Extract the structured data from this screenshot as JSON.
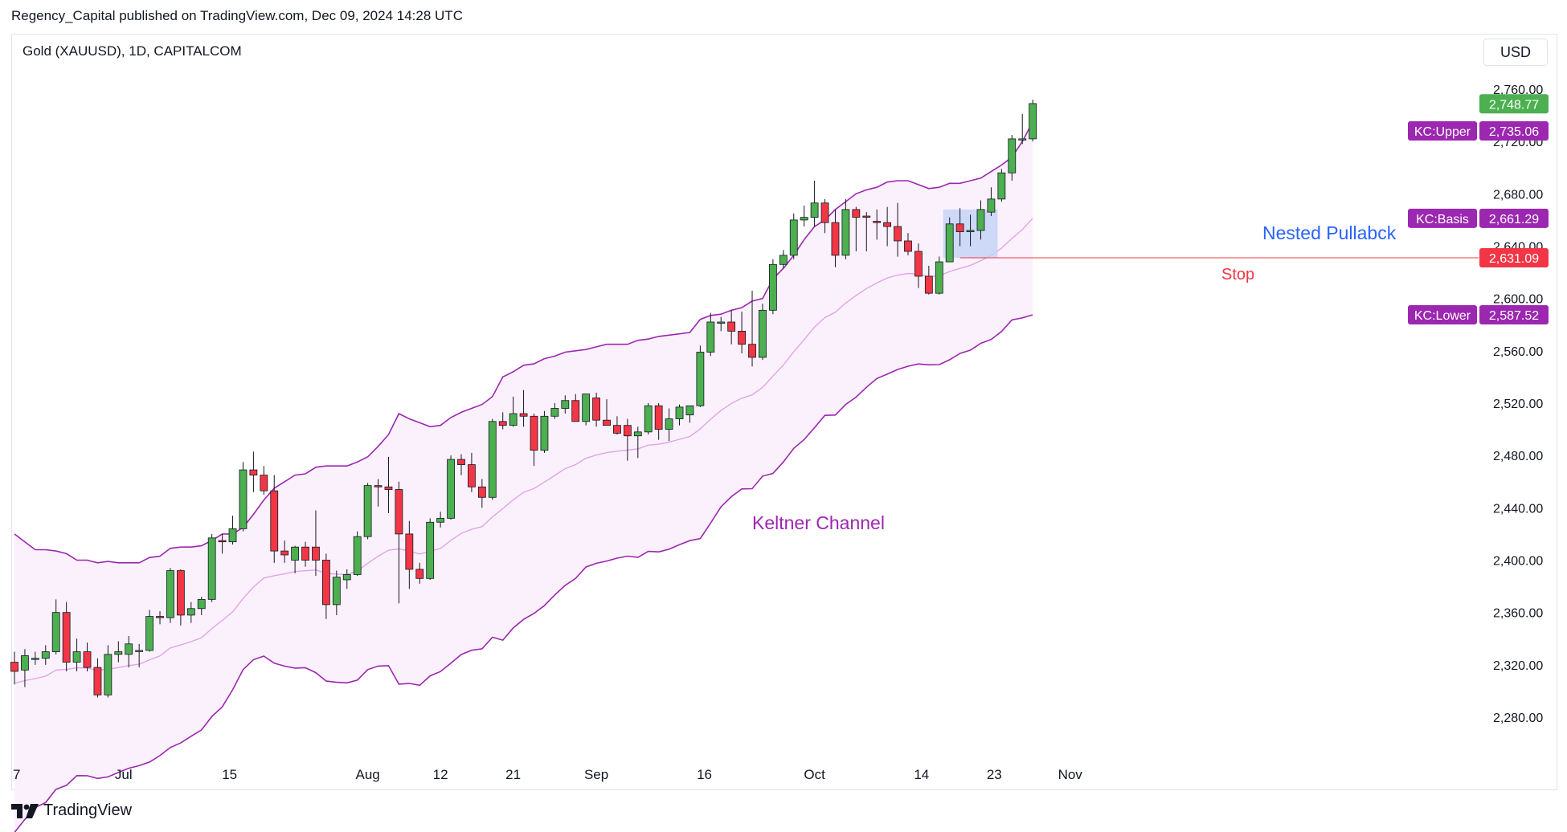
{
  "publisher_line": "Regency_Capital published on TradingView.com, Dec 09, 2024 14:28 UTC",
  "symbol_line": "Gold (XAUUSD), 1D, CAPITALCOM",
  "currency": "USD",
  "brand": "TradingView",
  "colors": {
    "up": "#4caf50",
    "down": "#f23645",
    "band_line": "#9c27b0",
    "basis_line": "#e1a3e8",
    "band_fill": "#fbf1fc",
    "highlight": "#c5d3f6",
    "stop_line": "#f23645",
    "label_purple": "#9c27b0",
    "last_price": "#4caf50",
    "stop_price": "#f23645"
  },
  "chart_data": {
    "type": "candlestick",
    "ylim": [
      2250,
      2775
    ],
    "y_ticks": [
      2280,
      2320,
      2360,
      2400,
      2440,
      2480,
      2520,
      2560,
      2600,
      2640,
      2680,
      2720,
      2760
    ],
    "y_tick_labels": [
      "2,280.00",
      "2,320.00",
      "2,360.00",
      "2,400.00",
      "2,440.00",
      "2,480.00",
      "2,520.00",
      "2,560.00",
      "2,600.00",
      "2,640.00",
      "2,680.00",
      "2,720.00",
      "2,760.00"
    ],
    "x_ticks": [
      {
        "label": "7",
        "bar": 0
      },
      {
        "label": "Jul",
        "bar": 10.5
      },
      {
        "label": "15",
        "bar": 20.7
      },
      {
        "label": "Aug",
        "bar": 34
      },
      {
        "label": "12",
        "bar": 41
      },
      {
        "label": "21",
        "bar": 48
      },
      {
        "label": "Sep",
        "bar": 56
      },
      {
        "label": "16",
        "bar": 66.4
      },
      {
        "label": "Oct",
        "bar": 77
      },
      {
        "label": "14",
        "bar": 87.3
      },
      {
        "label": "23",
        "bar": 94.3
      },
      {
        "label": "Nov",
        "bar": 101.6
      }
    ],
    "candles": [
      [
        2322,
        2330,
        2305,
        2315
      ],
      [
        2316,
        2332,
        2303,
        2327
      ],
      [
        2325,
        2330,
        2320,
        2325
      ],
      [
        2325,
        2335,
        2320,
        2330
      ],
      [
        2330,
        2370,
        2328,
        2360
      ],
      [
        2360,
        2368,
        2315,
        2322
      ],
      [
        2322,
        2340,
        2315,
        2330
      ],
      [
        2330,
        2337,
        2315,
        2318
      ],
      [
        2318,
        2325,
        2295,
        2297
      ],
      [
        2297,
        2335,
        2295,
        2328
      ],
      [
        2328,
        2338,
        2322,
        2330
      ],
      [
        2328,
        2342,
        2318,
        2336
      ],
      [
        2331,
        2336,
        2318,
        2331
      ],
      [
        2331,
        2362,
        2330,
        2357
      ],
      [
        2357,
        2361,
        2351,
        2356
      ],
      [
        2356,
        2394,
        2352,
        2392
      ],
      [
        2392,
        2393,
        2350,
        2358
      ],
      [
        2358,
        2368,
        2352,
        2363
      ],
      [
        2363,
        2372,
        2358,
        2370
      ],
      [
        2370,
        2420,
        2368,
        2417
      ],
      [
        2415,
        2420,
        2405,
        2414
      ],
      [
        2414,
        2434,
        2412,
        2424
      ],
      [
        2424,
        2475,
        2422,
        2469
      ],
      [
        2469,
        2483,
        2452,
        2465
      ],
      [
        2465,
        2472,
        2450,
        2453
      ],
      [
        2453,
        2465,
        2398,
        2407
      ],
      [
        2407,
        2415,
        2398,
        2404
      ],
      [
        2400,
        2411,
        2390,
        2410
      ],
      [
        2410,
        2414,
        2395,
        2400
      ],
      [
        2410,
        2438,
        2388,
        2400
      ],
      [
        2400,
        2405,
        2355,
        2366
      ],
      [
        2366,
        2392,
        2358,
        2387
      ],
      [
        2385,
        2393,
        2378,
        2389
      ],
      [
        2389,
        2422,
        2388,
        2418
      ],
      [
        2418,
        2459,
        2416,
        2457
      ],
      [
        2457,
        2462,
        2441,
        2456
      ],
      [
        2456,
        2479,
        2436,
        2454
      ],
      [
        2454,
        2460,
        2367,
        2420
      ],
      [
        2420,
        2430,
        2378,
        2393
      ],
      [
        2393,
        2398,
        2382,
        2386
      ],
      [
        2386,
        2432,
        2385,
        2429
      ],
      [
        2429,
        2437,
        2425,
        2432
      ],
      [
        2432,
        2480,
        2431,
        2477
      ],
      [
        2477,
        2481,
        2465,
        2473
      ],
      [
        2473,
        2482,
        2452,
        2456
      ],
      [
        2456,
        2462,
        2440,
        2448
      ],
      [
        2448,
        2508,
        2446,
        2506
      ],
      [
        2506,
        2513,
        2500,
        2503
      ],
      [
        2503,
        2525,
        2502,
        2512
      ],
      [
        2512,
        2530,
        2502,
        2510
      ],
      [
        2510,
        2512,
        2472,
        2484
      ],
      [
        2484,
        2514,
        2482,
        2510
      ],
      [
        2510,
        2520,
        2508,
        2516
      ],
      [
        2516,
        2526,
        2512,
        2522
      ],
      [
        2522,
        2527,
        2506,
        2506
      ],
      [
        2506,
        2527,
        2503,
        2527
      ],
      [
        2524,
        2528,
        2502,
        2507
      ],
      [
        2507,
        2523,
        2504,
        2503
      ],
      [
        2503,
        2510,
        2496,
        2497
      ],
      [
        2503,
        2508,
        2476,
        2495
      ],
      [
        2495,
        2502,
        2478,
        2498
      ],
      [
        2498,
        2520,
        2496,
        2518
      ],
      [
        2518,
        2520,
        2492,
        2500
      ],
      [
        2500,
        2516,
        2491,
        2508
      ],
      [
        2508,
        2519,
        2503,
        2517
      ],
      [
        2511,
        2518,
        2505,
        2518
      ],
      [
        2518,
        2564,
        2517,
        2559
      ],
      [
        2559,
        2589,
        2556,
        2582
      ],
      [
        2581,
        2586,
        2575,
        2582
      ],
      [
        2582,
        2591,
        2565,
        2575
      ],
      [
        2575,
        2590,
        2558,
        2565
      ],
      [
        2565,
        2606,
        2548,
        2555
      ],
      [
        2555,
        2596,
        2553,
        2591
      ],
      [
        2591,
        2630,
        2588,
        2626
      ],
      [
        2626,
        2637,
        2623,
        2633
      ],
      [
        2633,
        2665,
        2630,
        2660
      ],
      [
        2660,
        2671,
        2655,
        2662
      ],
      [
        2662,
        2690,
        2655,
        2673
      ],
      [
        2673,
        2676,
        2650,
        2658
      ],
      [
        2658,
        2668,
        2624,
        2633
      ],
      [
        2633,
        2676,
        2630,
        2668
      ],
      [
        2668,
        2670,
        2636,
        2662
      ],
      [
        2663,
        2666,
        2636,
        2662
      ],
      [
        2659,
        2668,
        2645,
        2658
      ],
      [
        2658,
        2670,
        2640,
        2655
      ],
      [
        2655,
        2673,
        2632,
        2644
      ],
      [
        2644,
        2650,
        2633,
        2636
      ],
      [
        2636,
        2642,
        2608,
        2617
      ],
      [
        2617,
        2625,
        2603,
        2604
      ],
      [
        2604,
        2632,
        2603,
        2628
      ],
      [
        2628,
        2662,
        2628,
        2657
      ],
      [
        2657,
        2669,
        2640,
        2651
      ],
      [
        2651,
        2664,
        2640,
        2652
      ],
      [
        2652,
        2675,
        2645,
        2668
      ],
      [
        2666,
        2685,
        2663,
        2676
      ],
      [
        2676,
        2699,
        2674,
        2696
      ],
      [
        2696,
        2725,
        2690,
        2722
      ],
      [
        2722,
        2741,
        2718,
        2722
      ],
      [
        2722,
        2752,
        2720,
        2749
      ]
    ],
    "kc_upper": [
      2420,
      2414,
      2408,
      2408,
      2407,
      2405,
      2400,
      2400,
      2398,
      2399,
      2398,
      2398,
      2398,
      2402,
      2403,
      2409,
      2410,
      2410,
      2411,
      2415,
      2420,
      2420,
      2425,
      2435,
      2446,
      2455,
      2460,
      2465,
      2466,
      2471,
      2472,
      2472,
      2472,
      2475,
      2479,
      2487,
      2496,
      2512,
      2508,
      2505,
      2502,
      2503,
      2509,
      2513,
      2516,
      2519,
      2525,
      2540,
      2544,
      2549,
      2550,
      2554,
      2556,
      2559,
      2560,
      2561,
      2563,
      2565,
      2565,
      2565,
      2568,
      2569,
      2571,
      2572,
      2573,
      2574,
      2584,
      2587,
      2588,
      2591,
      2593,
      2598,
      2600,
      2615,
      2623,
      2633,
      2645,
      2655,
      2660,
      2668,
      2674,
      2680,
      2683,
      2685,
      2689,
      2690,
      2690,
      2687,
      2684,
      2685,
      2688,
      2688,
      2690,
      2692,
      2697,
      2702,
      2708,
      2720,
      2735
    ]
  },
  "overlays": {
    "keltner_label": "Keltner Channel",
    "nested_label": "Nested Pullabck",
    "stop_label": "Stop"
  },
  "price_labels": {
    "last": "2,748.77",
    "upper_name": "KC:Upper",
    "upper": "2,735.06",
    "basis_name": "KC:Basis",
    "basis": "2,661.29",
    "stop": "2,631.09",
    "lower_name": "KC:Lower",
    "lower": "2,587.52"
  }
}
